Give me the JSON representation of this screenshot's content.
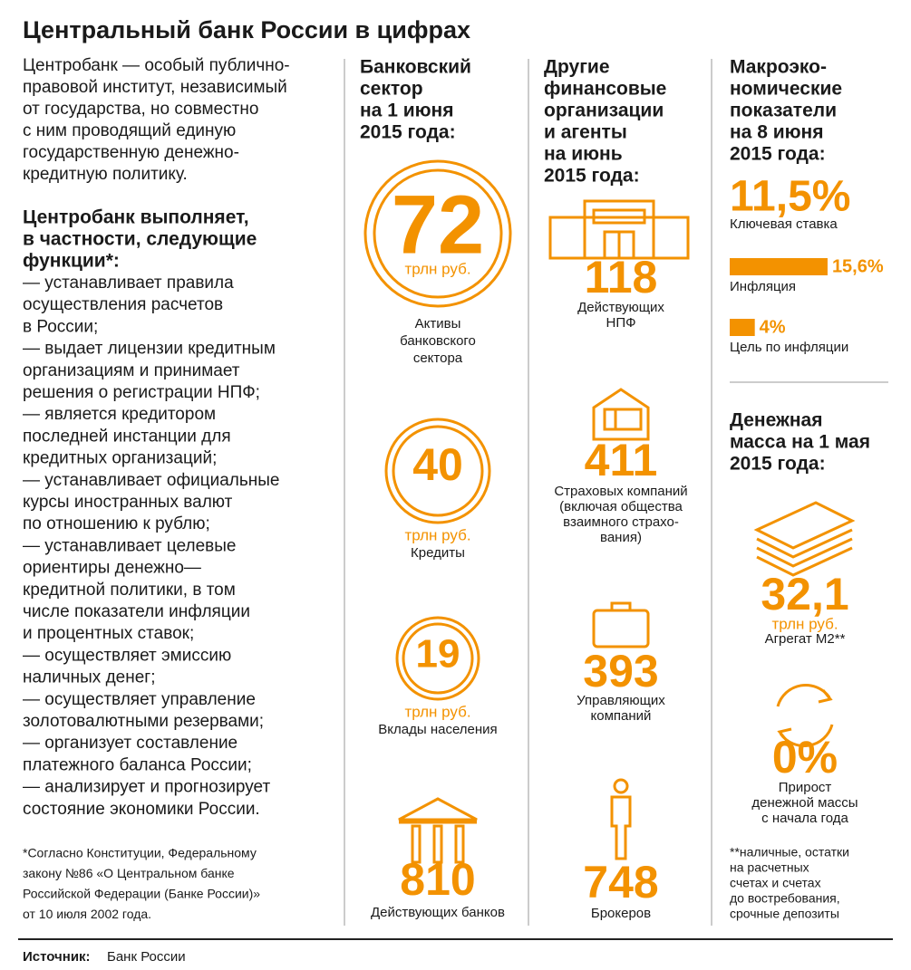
{
  "header": {
    "title": "Центральный банк России в цифрах"
  },
  "intro": {
    "lines": [
      "Центробанк — особый публично-",
      "правовой институт, независимый",
      "от государства, но совместно",
      "с ним проводящий единую",
      "государственную денежно-",
      "кредитную политику."
    ]
  },
  "functions": {
    "heading_lines": [
      "Центробанк выполняет,",
      "в частности, следующие",
      "функции*:"
    ],
    "lines": [
      "— устанавливает правила",
      "осуществления расчетов",
      "в России;",
      "— выдает лицензии кредитным",
      "организациям и принимает",
      "решения о регистрации НПФ;",
      "— является кредитором",
      "последней инстанции для",
      "кредитных организаций;",
      "— устанавливает официальные",
      "курсы иностранных валют",
      "по отношению к рублю;",
      "— устанавливает целевые",
      "ориентиры денежно—",
      "кредитной политики, в том",
      "числе показатели инфляции",
      "и процентных ставок;",
      "— осуществляет эмиссию",
      "наличных денег;",
      "— осуществляет управление",
      "золотовалютными резервами;",
      "— организует составление",
      "платежного баланса России;",
      "— анализирует и прогнозирует",
      "состояние экономики России."
    ]
  },
  "footnote": {
    "lines": [
      "*Согласно Конституции, Федеральному",
      "закону №86 «О Центральном банке",
      "Российской Федерации (Банке России)»",
      "от 10 июля 2002 года."
    ]
  },
  "banking": {
    "heading_lines": [
      "Банковский",
      "сектор",
      "на 1 июня",
      "2015 года:"
    ],
    "items": [
      {
        "value": "72",
        "unit": "трлн руб.",
        "label_lines": [
          "Активы",
          "банковского",
          "сектора"
        ]
      },
      {
        "value": "40",
        "unit": "трлн руб.",
        "label_lines": [
          "Кредиты"
        ]
      },
      {
        "value": "19",
        "unit": "трлн руб.",
        "label_lines": [
          "Вклады населения"
        ]
      },
      {
        "value": "810",
        "label_lines": [
          "Действующих банков"
        ]
      }
    ]
  },
  "other": {
    "heading_lines": [
      "Другие",
      "финансовые",
      "организации",
      "и агенты",
      "на июнь",
      "2015 года:"
    ],
    "items": [
      {
        "value": "118",
        "label_lines": [
          "Действующих",
          "НПФ"
        ]
      },
      {
        "value": "411",
        "label_lines": [
          "Страховых компаний",
          "(включая общества",
          "взаимного страхо-",
          "вания)"
        ]
      },
      {
        "value": "393",
        "label_lines": [
          "Управляющих",
          "компаний"
        ]
      },
      {
        "value": "748",
        "label_lines": [
          "Брокеров"
        ]
      }
    ]
  },
  "macro": {
    "heading_lines": [
      "Макроэко-",
      "номические",
      "показатели",
      "на 8 июня",
      "2015 года:"
    ],
    "key_rate": {
      "value": "11,5%",
      "label": "Ключевая ставка"
    },
    "bars": [
      {
        "value": 15.6,
        "value_label": "15,6%",
        "label": "Инфляция"
      },
      {
        "value": 4,
        "value_label": "4%",
        "label": "Цель по инфляции"
      }
    ]
  },
  "money": {
    "heading_lines": [
      "Денежная",
      "масса на 1 мая",
      "2015 года:"
    ],
    "items": [
      {
        "value": "32,1",
        "unit": "трлн руб.",
        "label_lines": [
          "Агрегат М2**"
        ]
      },
      {
        "value": "0%",
        "label_lines": [
          "Прирост",
          "денежной массы",
          "с начала года"
        ]
      }
    ],
    "footnote_lines": [
      "**наличные, остатки",
      "на расчетных",
      "счетах и счетах",
      "до востребования,",
      "срочные депозиты"
    ]
  },
  "source": {
    "label": "Источник:",
    "text": "Банк России"
  }
}
